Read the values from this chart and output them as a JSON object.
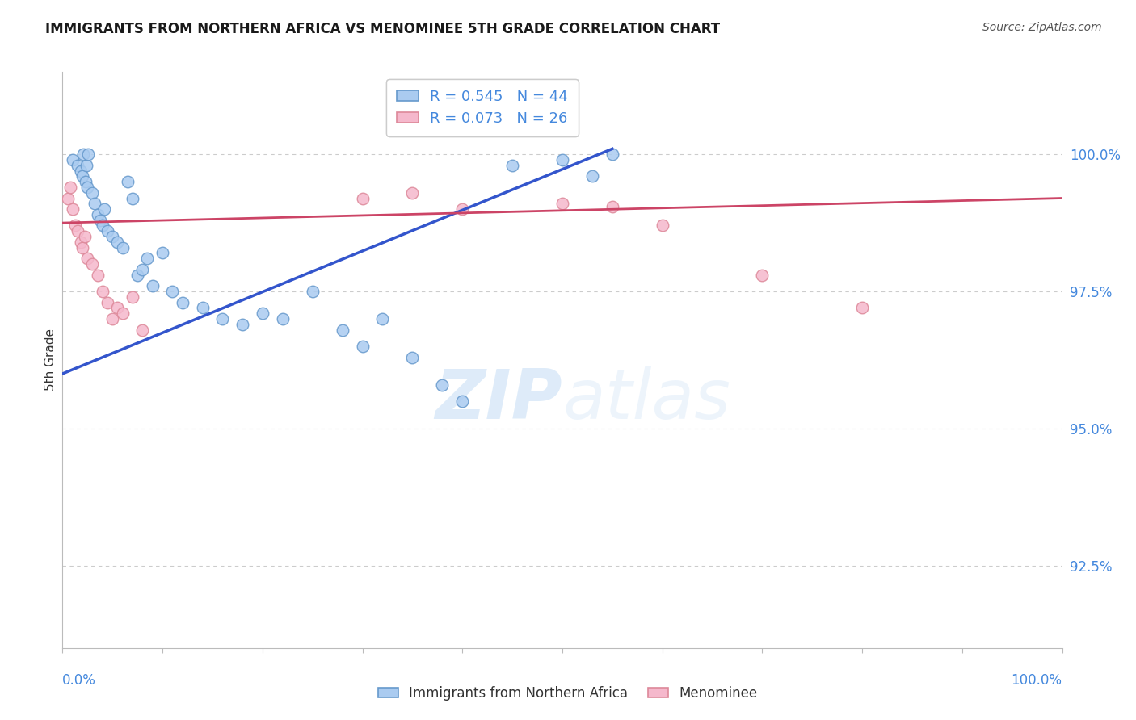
{
  "title": "IMMIGRANTS FROM NORTHERN AFRICA VS MENOMINEE 5TH GRADE CORRELATION CHART",
  "source": "Source: ZipAtlas.com",
  "xlim": [
    0.0,
    100.0
  ],
  "ylim": [
    91.0,
    101.5
  ],
  "yticks": [
    92.5,
    95.0,
    97.5,
    100.0
  ],
  "ytick_labels": [
    "92.5%",
    "95.0%",
    "97.5%",
    "100.0%"
  ],
  "ylabel": "5th Grade",
  "legend_bottom": [
    "Immigrants from Northern Africa",
    "Menominee"
  ],
  "blue_scatter_x": [
    1.0,
    1.5,
    1.8,
    2.0,
    2.1,
    2.3,
    2.4,
    2.5,
    2.6,
    3.0,
    3.2,
    3.5,
    3.8,
    4.0,
    4.2,
    4.5,
    5.0,
    5.5,
    6.0,
    6.5,
    7.0,
    7.5,
    8.0,
    8.5,
    9.0,
    10.0,
    11.0,
    12.0,
    14.0,
    16.0,
    18.0,
    20.0,
    22.0,
    25.0,
    28.0,
    30.0,
    32.0,
    35.0,
    38.0,
    40.0,
    45.0,
    50.0,
    53.0,
    55.0
  ],
  "blue_scatter_y": [
    99.9,
    99.8,
    99.7,
    99.6,
    100.0,
    99.5,
    99.8,
    99.4,
    100.0,
    99.3,
    99.1,
    98.9,
    98.8,
    98.7,
    99.0,
    98.6,
    98.5,
    98.4,
    98.3,
    99.5,
    99.2,
    97.8,
    97.9,
    98.1,
    97.6,
    98.2,
    97.5,
    97.3,
    97.2,
    97.0,
    96.9,
    97.1,
    97.0,
    97.5,
    96.8,
    96.5,
    97.0,
    96.3,
    95.8,
    95.5,
    99.8,
    99.9,
    99.6,
    100.0
  ],
  "pink_scatter_x": [
    0.5,
    0.8,
    1.0,
    1.3,
    1.5,
    1.8,
    2.0,
    2.2,
    2.5,
    3.0,
    3.5,
    4.0,
    4.5,
    5.0,
    5.5,
    6.0,
    7.0,
    8.0,
    30.0,
    35.0,
    40.0,
    50.0,
    55.0,
    60.0,
    70.0,
    80.0
  ],
  "pink_scatter_y": [
    99.2,
    99.4,
    99.0,
    98.7,
    98.6,
    98.4,
    98.3,
    98.5,
    98.1,
    98.0,
    97.8,
    97.5,
    97.3,
    97.0,
    97.2,
    97.1,
    97.4,
    96.8,
    99.2,
    99.3,
    99.0,
    99.1,
    99.05,
    98.7,
    97.8,
    97.2
  ],
  "blue_line_x": [
    0.0,
    55.0
  ],
  "blue_line_y": [
    96.0,
    100.1
  ],
  "pink_line_x": [
    0.0,
    100.0
  ],
  "pink_line_y": [
    98.75,
    99.2
  ],
  "dot_size": 110,
  "blue_color": "#aacbf0",
  "blue_edge_color": "#6699cc",
  "pink_color": "#f5b8cc",
  "pink_edge_color": "#dd8899",
  "blue_line_color": "#3355cc",
  "pink_line_color": "#cc4466",
  "grid_color": "#cccccc",
  "title_color": "#1a1a1a",
  "value_color": "#4488dd",
  "source_color": "#555555"
}
